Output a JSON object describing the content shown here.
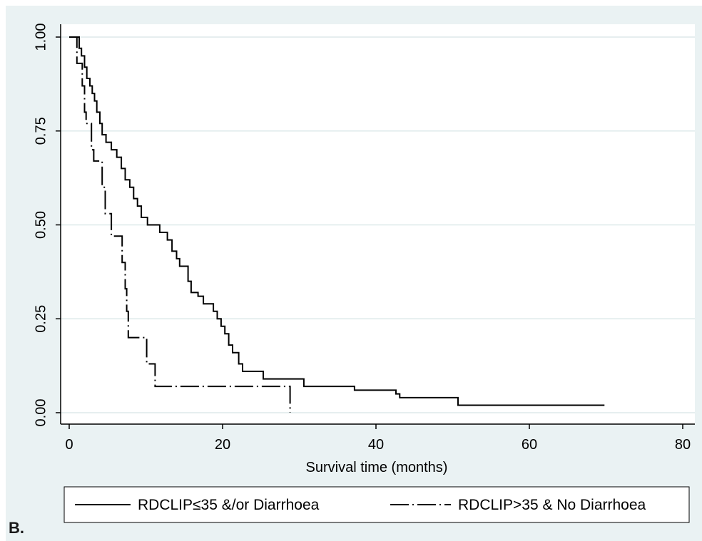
{
  "panel_label": "B.",
  "chart_data": {
    "type": "line",
    "title": "",
    "xlabel": "Survival time (months)",
    "ylabel": "",
    "xlim": [
      0,
      80
    ],
    "ylim": [
      0,
      1
    ],
    "x_ticks": [
      "0",
      "20",
      "40",
      "60",
      "80"
    ],
    "y_ticks": [
      "0.00",
      "0.25",
      "0.50",
      "0.75",
      "1.00"
    ],
    "grid": true,
    "legend": "bottom",
    "colors": {
      "line": "#000000",
      "grid": "#dde9ea",
      "plot_bg": "#ffffff",
      "panel_bg": "#eaf2f3"
    },
    "series": [
      {
        "name": "RDCLIP≤35 &/or Diarrhoea",
        "style": "solid",
        "points": [
          [
            0,
            1.0
          ],
          [
            1.3,
            1.0
          ],
          [
            1.3,
            0.97
          ],
          [
            1.6,
            0.97
          ],
          [
            1.6,
            0.95
          ],
          [
            2.0,
            0.95
          ],
          [
            2.0,
            0.92
          ],
          [
            2.3,
            0.92
          ],
          [
            2.3,
            0.89
          ],
          [
            2.7,
            0.89
          ],
          [
            2.7,
            0.87
          ],
          [
            3.0,
            0.87
          ],
          [
            3.0,
            0.85
          ],
          [
            3.3,
            0.85
          ],
          [
            3.3,
            0.83
          ],
          [
            3.6,
            0.83
          ],
          [
            3.6,
            0.8
          ],
          [
            4.0,
            0.8
          ],
          [
            4.0,
            0.77
          ],
          [
            4.3,
            0.77
          ],
          [
            4.3,
            0.74
          ],
          [
            4.8,
            0.74
          ],
          [
            4.8,
            0.72
          ],
          [
            5.5,
            0.72
          ],
          [
            5.5,
            0.7
          ],
          [
            6.2,
            0.7
          ],
          [
            6.2,
            0.68
          ],
          [
            6.8,
            0.68
          ],
          [
            6.8,
            0.65
          ],
          [
            7.3,
            0.65
          ],
          [
            7.3,
            0.62
          ],
          [
            7.9,
            0.62
          ],
          [
            7.9,
            0.6
          ],
          [
            8.4,
            0.6
          ],
          [
            8.4,
            0.57
          ],
          [
            8.9,
            0.57
          ],
          [
            8.9,
            0.55
          ],
          [
            9.4,
            0.55
          ],
          [
            9.4,
            0.52
          ],
          [
            10.2,
            0.52
          ],
          [
            10.2,
            0.5
          ],
          [
            11.8,
            0.5
          ],
          [
            11.8,
            0.48
          ],
          [
            12.8,
            0.48
          ],
          [
            12.8,
            0.46
          ],
          [
            13.4,
            0.46
          ],
          [
            13.4,
            0.43
          ],
          [
            14.0,
            0.43
          ],
          [
            14.0,
            0.41
          ],
          [
            14.4,
            0.41
          ],
          [
            14.4,
            0.39
          ],
          [
            15.5,
            0.39
          ],
          [
            15.5,
            0.35
          ],
          [
            15.9,
            0.35
          ],
          [
            15.9,
            0.32
          ],
          [
            16.8,
            0.32
          ],
          [
            16.8,
            0.31
          ],
          [
            17.5,
            0.31
          ],
          [
            17.5,
            0.29
          ],
          [
            18.8,
            0.29
          ],
          [
            18.8,
            0.27
          ],
          [
            19.3,
            0.27
          ],
          [
            19.3,
            0.25
          ],
          [
            19.8,
            0.25
          ],
          [
            19.8,
            0.23
          ],
          [
            20.3,
            0.23
          ],
          [
            20.3,
            0.21
          ],
          [
            20.8,
            0.21
          ],
          [
            20.8,
            0.18
          ],
          [
            21.3,
            0.18
          ],
          [
            21.3,
            0.16
          ],
          [
            22.1,
            0.16
          ],
          [
            22.1,
            0.13
          ],
          [
            22.6,
            0.13
          ],
          [
            22.6,
            0.11
          ],
          [
            25.3,
            0.11
          ],
          [
            25.3,
            0.09
          ],
          [
            30.6,
            0.09
          ],
          [
            30.6,
            0.07
          ],
          [
            37.2,
            0.07
          ],
          [
            37.2,
            0.06
          ],
          [
            42.6,
            0.06
          ],
          [
            42.6,
            0.05
          ],
          [
            43.1,
            0.05
          ],
          [
            43.1,
            0.04
          ],
          [
            50.7,
            0.04
          ],
          [
            50.7,
            0.02
          ],
          [
            69.8,
            0.02
          ]
        ]
      },
      {
        "name": "RDCLIP>35 & No Diarrhoea",
        "style": "dash-dot",
        "points": [
          [
            0,
            1.0
          ],
          [
            1.0,
            1.0
          ],
          [
            1.0,
            0.93
          ],
          [
            1.7,
            0.93
          ],
          [
            1.7,
            0.87
          ],
          [
            2.0,
            0.87
          ],
          [
            2.0,
            0.8
          ],
          [
            2.2,
            0.8
          ],
          [
            2.2,
            0.77
          ],
          [
            2.9,
            0.77
          ],
          [
            2.9,
            0.7
          ],
          [
            3.2,
            0.7
          ],
          [
            3.2,
            0.67
          ],
          [
            4.3,
            0.67
          ],
          [
            4.3,
            0.6
          ],
          [
            4.7,
            0.6
          ],
          [
            4.7,
            0.53
          ],
          [
            5.5,
            0.53
          ],
          [
            5.5,
            0.47
          ],
          [
            6.9,
            0.47
          ],
          [
            6.9,
            0.4
          ],
          [
            7.3,
            0.4
          ],
          [
            7.3,
            0.33
          ],
          [
            7.5,
            0.33
          ],
          [
            7.5,
            0.27
          ],
          [
            7.7,
            0.27
          ],
          [
            7.7,
            0.2
          ],
          [
            10.1,
            0.2
          ],
          [
            10.1,
            0.13
          ],
          [
            11.2,
            0.13
          ],
          [
            11.2,
            0.07
          ],
          [
            28.8,
            0.07
          ],
          [
            28.8,
            0.0
          ]
        ]
      }
    ]
  }
}
